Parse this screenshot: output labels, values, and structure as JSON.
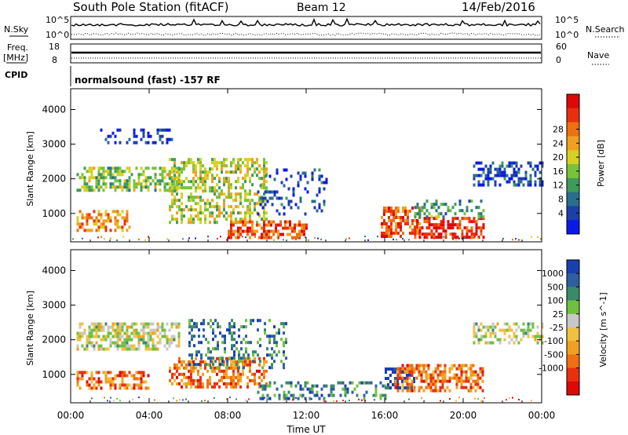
{
  "header": {
    "station": "South Pole Station (fitACF)",
    "beam": "Beam 12",
    "date": "14/Feb/2016"
  },
  "aux_panels": {
    "nsky_label": "N.Sky",
    "nsky_ticks": [
      "10^5",
      "10^0"
    ],
    "nsearch_label": "N.Search",
    "nsearch_ticks": [
      "10^5",
      "10^0"
    ],
    "freq_label": "Freq.",
    "freq_unit": "[MHz]",
    "freq_ticks": [
      "18",
      "8"
    ],
    "nave_label": "Nave",
    "nave_ticks": [
      "60",
      "0"
    ],
    "cpid_label": "CPID",
    "cpid_text": "normalsound (fast) -157 RF"
  },
  "chart_data": [
    {
      "type": "heatmap",
      "name": "power",
      "ylabel": "Slant Range [km]",
      "xlabel": "",
      "x_ticks": [
        "00:00",
        "04:00",
        "08:00",
        "12:00",
        "16:00",
        "20:00",
        "00:00"
      ],
      "y_ticks": [
        1000,
        2000,
        3000,
        4000
      ],
      "ylim": [
        180,
        4600
      ],
      "xlim_hours": [
        0,
        24
      ],
      "colorbar": {
        "label": "Power [dB]",
        "ticks": [
          "4",
          "8",
          "12",
          "16",
          "20",
          "24",
          "28"
        ],
        "colors": [
          "#0a1ae6",
          "#1e3fa8",
          "#2a6e8c",
          "#3f9a5a",
          "#79c23a",
          "#d6d020",
          "#f0a020",
          "#ee7010",
          "#e83010",
          "#dd0808"
        ]
      },
      "regions": [
        {
          "x0": 0.3,
          "x1": 5.5,
          "y0": 1700,
          "y1": 2350,
          "level": 0.45,
          "density": 0.55
        },
        {
          "x0": 0.3,
          "x1": 3.0,
          "y0": 500,
          "y1": 1100,
          "level": 0.7,
          "density": 0.45
        },
        {
          "x0": 1.5,
          "x1": 5.2,
          "y0": 3050,
          "y1": 3450,
          "level": 0.1,
          "density": 0.3
        },
        {
          "x0": 5.0,
          "x1": 10.0,
          "y0": 700,
          "y1": 2600,
          "level": 0.5,
          "density": 0.5
        },
        {
          "x0": 8.0,
          "x1": 12.0,
          "y0": 300,
          "y1": 800,
          "level": 0.8,
          "density": 0.55
        },
        {
          "x0": 9.5,
          "x1": 13.0,
          "y0": 1000,
          "y1": 2300,
          "level": 0.15,
          "density": 0.2
        },
        {
          "x0": 15.8,
          "x1": 17.8,
          "y0": 300,
          "y1": 1200,
          "level": 0.8,
          "density": 0.6
        },
        {
          "x0": 17.5,
          "x1": 21.0,
          "y0": 300,
          "y1": 900,
          "level": 0.9,
          "density": 0.55
        },
        {
          "x0": 17.5,
          "x1": 21.0,
          "y0": 900,
          "y1": 1400,
          "level": 0.35,
          "density": 0.35
        },
        {
          "x0": 20.5,
          "x1": 24.0,
          "y0": 1800,
          "y1": 2500,
          "level": 0.15,
          "density": 0.5
        }
      ]
    },
    {
      "type": "heatmap",
      "name": "velocity",
      "ylabel": "Slant Range [km]",
      "xlabel": "Time UT",
      "x_ticks": [
        "00:00",
        "04:00",
        "08:00",
        "12:00",
        "16:00",
        "20:00",
        "00:00"
      ],
      "y_ticks": [
        1000,
        2000,
        3000,
        4000
      ],
      "ylim": [
        180,
        4600
      ],
      "xlim_hours": [
        0,
        24
      ],
      "colorbar": {
        "label": "Velocity [m s^-1]",
        "ticks": [
          "1000",
          "500",
          "100",
          "25",
          "-25",
          "-100",
          "-500",
          "-1000"
        ],
        "colors": [
          "#1a3fae",
          "#2f5f9e",
          "#3a8a6a",
          "#70c040",
          "#c8c8c8",
          "#f0c040",
          "#f0a020",
          "#ee7010",
          "#e83010",
          "#dd0808"
        ]
      },
      "regions": [
        {
          "x0": 0.3,
          "x1": 5.5,
          "y0": 1700,
          "y1": 2500,
          "level": 0.45,
          "density": 0.6
        },
        {
          "x0": 0.3,
          "x1": 4.0,
          "y0": 600,
          "y1": 1100,
          "level": 0.75,
          "density": 0.5
        },
        {
          "x0": 5.0,
          "x1": 10.0,
          "y0": 600,
          "y1": 1500,
          "level": 0.75,
          "density": 0.5
        },
        {
          "x0": 6.0,
          "x1": 11.0,
          "y0": 1200,
          "y1": 2600,
          "level": 0.2,
          "density": 0.3
        },
        {
          "x0": 9.5,
          "x1": 16.0,
          "y0": 300,
          "y1": 800,
          "level": 0.22,
          "density": 0.35
        },
        {
          "x0": 16.0,
          "x1": 17.5,
          "y0": 600,
          "y1": 1200,
          "level": 0.05,
          "density": 0.6
        },
        {
          "x0": 16.5,
          "x1": 21.0,
          "y0": 500,
          "y1": 1300,
          "level": 0.75,
          "density": 0.55
        },
        {
          "x0": 20.5,
          "x1": 24.0,
          "y0": 1900,
          "y1": 2500,
          "level": 0.45,
          "density": 0.5
        }
      ]
    }
  ]
}
